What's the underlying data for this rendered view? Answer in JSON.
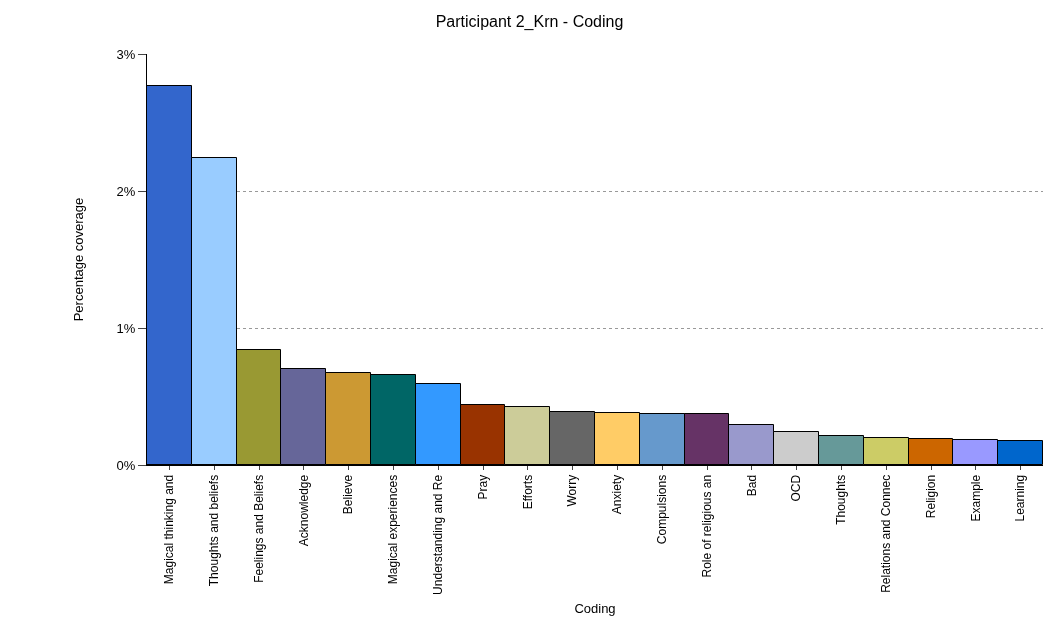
{
  "chart_data": {
    "type": "bar",
    "title": "Participant 2_Krn - Coding",
    "xlabel": "Coding",
    "ylabel": "Percentage coverage",
    "categories": [
      "Magical thinking and",
      "Thoughts and beliefs",
      "Feelings and Beliefs",
      "Acknowledge",
      "Believe",
      "Magical experiences",
      "Understanding and Re",
      "Pray",
      "Efforts",
      "Worry",
      "Anxiety",
      "Compulsions",
      "Role of religious an",
      "Bad",
      "OCD",
      "Thoughts",
      "Relations and Connec",
      "Religion",
      "Example",
      "Learning"
    ],
    "values": [
      2.77,
      2.24,
      0.84,
      0.7,
      0.67,
      0.66,
      0.59,
      0.44,
      0.42,
      0.39,
      0.38,
      0.37,
      0.37,
      0.29,
      0.24,
      0.21,
      0.2,
      0.19,
      0.18,
      0.175
    ],
    "colors": [
      "#3366cc",
      "#99ccff",
      "#999933",
      "#666699",
      "#cc9933",
      "#006666",
      "#3399ff",
      "#993300",
      "#cccc99",
      "#666666",
      "#ffcc66",
      "#6699cc",
      "#663366",
      "#9999cc",
      "#cccccc",
      "#669999",
      "#cccc66",
      "#cc6600",
      "#9999ff",
      "#0066cc"
    ],
    "ylim": [
      0,
      3
    ],
    "yticks": [
      {
        "value": 0,
        "label": "0%"
      },
      {
        "value": 1,
        "label": "1%"
      },
      {
        "value": 2,
        "label": "2%"
      },
      {
        "value": 3,
        "label": "3%"
      }
    ],
    "grid": "y"
  }
}
